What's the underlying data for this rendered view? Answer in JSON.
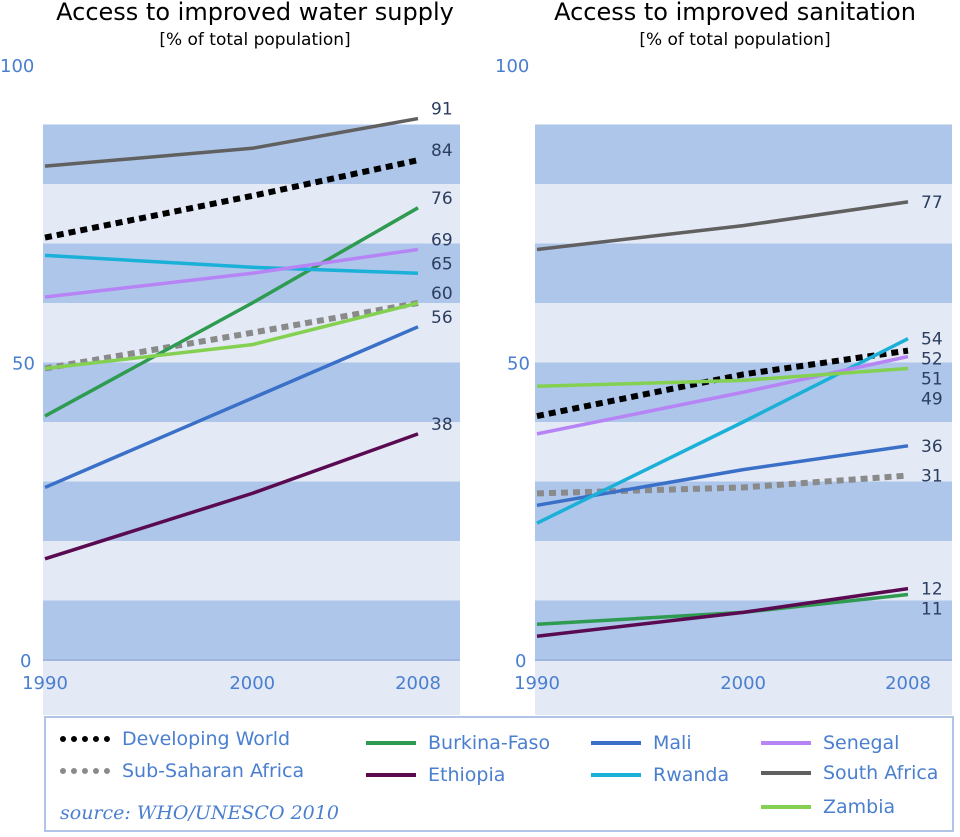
{
  "chart_data": [
    {
      "type": "line",
      "title": "Access to improved water supply",
      "subtitle": "[% of total population]",
      "x": [
        1990,
        2000,
        2008
      ],
      "xticks": [
        "1990",
        "2000",
        "2008"
      ],
      "yticks": [
        "0",
        "50",
        "100"
      ],
      "ylim": [
        0,
        100
      ],
      "grid": "alternating horizontal bands every 10",
      "series": [
        {
          "name": "Developing World",
          "values": [
            71,
            78,
            84
          ],
          "end_label": "84"
        },
        {
          "name": "Sub-Saharan Africa",
          "values": [
            49,
            55,
            60
          ],
          "end_label": "60"
        },
        {
          "name": "Burkina-Faso",
          "values": [
            41,
            60,
            76
          ],
          "end_label": "76"
        },
        {
          "name": "Ethiopia",
          "values": [
            17,
            28,
            38
          ],
          "end_label": "38"
        },
        {
          "name": "Mali",
          "values": [
            29,
            44,
            56
          ],
          "end_label": "56"
        },
        {
          "name": "Rwanda",
          "values": [
            68,
            66,
            65
          ],
          "end_label": "65"
        },
        {
          "name": "Senegal",
          "values": [
            61,
            65,
            69
          ],
          "end_label": "69"
        },
        {
          "name": "South Africa",
          "values": [
            83,
            86,
            91
          ],
          "end_label": "91"
        },
        {
          "name": "Zambia",
          "values": [
            49,
            53,
            60
          ],
          "end_label": ""
        }
      ]
    },
    {
      "type": "line",
      "title": "Access to improved sanitation",
      "subtitle": "[% of total population]",
      "x": [
        1990,
        2000,
        2008
      ],
      "xticks": [
        "1990",
        "2000",
        "2008"
      ],
      "yticks": [
        "0",
        "50",
        "100"
      ],
      "ylim": [
        0,
        100
      ],
      "grid": "alternating horizontal bands every 10",
      "series": [
        {
          "name": "Developing World",
          "values": [
            41,
            48,
            52
          ],
          "end_label": "52"
        },
        {
          "name": "Sub-Saharan Africa",
          "values": [
            28,
            29,
            31
          ],
          "end_label": "31"
        },
        {
          "name": "Burkina-Faso",
          "values": [
            6,
            8,
            11
          ],
          "end_label": "11"
        },
        {
          "name": "Ethiopia",
          "values": [
            4,
            8,
            12
          ],
          "end_label": "12"
        },
        {
          "name": "Mali",
          "values": [
            26,
            32,
            36
          ],
          "end_label": "36"
        },
        {
          "name": "Rwanda",
          "values": [
            23,
            40,
            54
          ],
          "end_label": "54"
        },
        {
          "name": "Senegal",
          "values": [
            38,
            45,
            51
          ],
          "end_label": "51"
        },
        {
          "name": "South Africa",
          "values": [
            69,
            73,
            77
          ],
          "end_label": "77"
        },
        {
          "name": "Zambia",
          "values": [
            46,
            47,
            49
          ],
          "end_label": "49"
        }
      ]
    }
  ],
  "colors": {
    "Developing World": "#000000",
    "Sub-Saharan Africa": "#8a8a8a",
    "Burkina-Faso": "#2e9b50",
    "Ethiopia": "#5a0a50",
    "Mali": "#3a70c8",
    "Rwanda": "#1ab0d8",
    "Senegal": "#b784f5",
    "South Africa": "#606060",
    "Zambia": "#84d050",
    "band_dark": "#adc6ea",
    "band_light": "#e4e9f6",
    "axis_text": "#4a7fd0"
  },
  "dashed": [
    "Developing World",
    "Sub-Saharan Africa"
  ],
  "legend": {
    "items": [
      "Developing World",
      "Sub-Saharan Africa",
      "Burkina-Faso",
      "Ethiopia",
      "Mali",
      "Rwanda",
      "Senegal",
      "South Africa",
      "Zambia"
    ],
    "source": "source: WHO/UNESCO 2010"
  }
}
